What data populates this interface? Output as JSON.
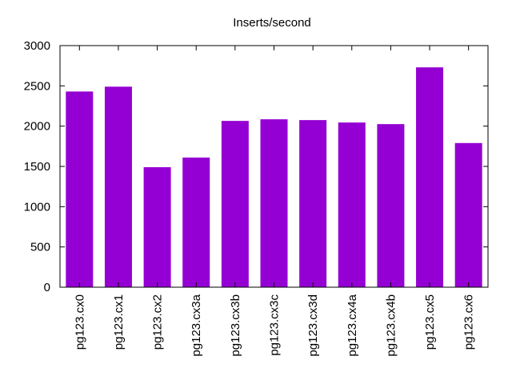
{
  "chart_data": {
    "type": "bar",
    "title": "Inserts/second",
    "xlabel": "",
    "ylabel": "",
    "ylim": [
      0,
      3000
    ],
    "yticks": [
      0,
      500,
      1000,
      1500,
      2000,
      2500,
      3000
    ],
    "grid": false,
    "categories": [
      "pg123.cx0",
      "pg123.cx1",
      "pg123.cx2",
      "pg123.cx3a",
      "pg123.cx3b",
      "pg123.cx3c",
      "pg123.cx3d",
      "pg123.cx4a",
      "pg123.cx4b",
      "pg123.cx5",
      "pg123.cx6"
    ],
    "values": [
      2430,
      2490,
      1490,
      1610,
      2065,
      2085,
      2075,
      2045,
      2025,
      2730,
      1790
    ],
    "color": "#9400d3"
  }
}
